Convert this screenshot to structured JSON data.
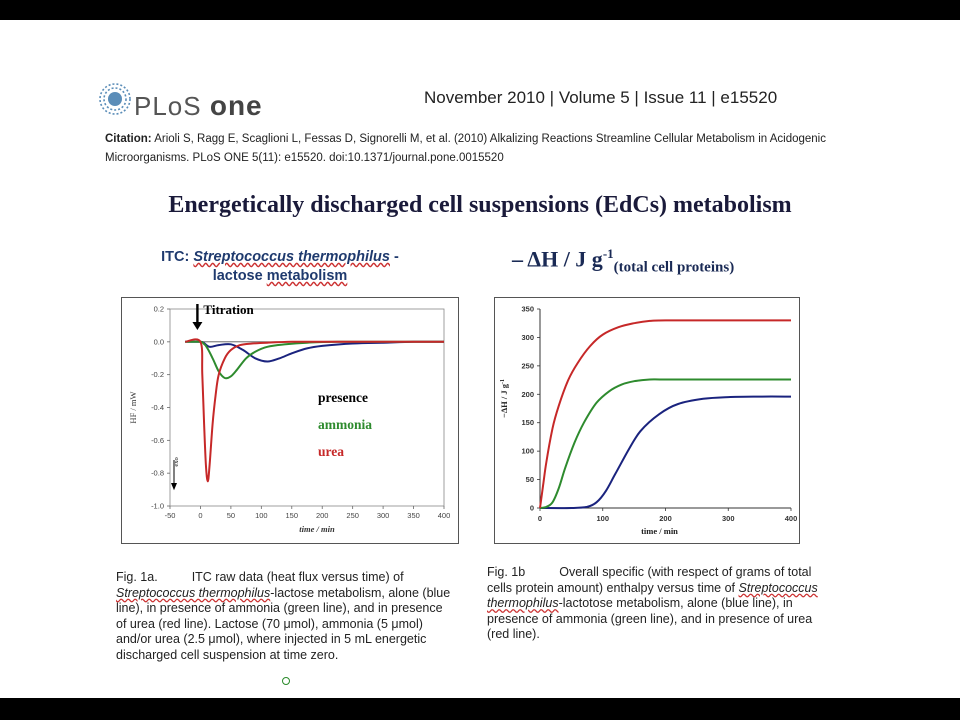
{
  "header": {
    "logo_text": "PLoS",
    "logo_text_2": "one",
    "issue": "November 2010 | Volume 5 | Issue 11 | e15520",
    "citation_label": "Citation:",
    "citation_text": "Arioli S, Ragg E, Scaglioni L, Fessas D, Signorelli M, et al. (2010) Alkalizing Reactions Streamline Cellular Metabolism in Acidogenic Microorganisms. PLoS ONE 5(11): e15520. doi:10.1371/journal.pone.0015520"
  },
  "slide_title": "Energetically discharged cell suspensions (EdCs) metabolism",
  "panel_a_heading": {
    "prefix": "ITC: ",
    "organism": "Streptococcus thermophilus",
    "suffix": " -",
    "line2_a": "lactose ",
    "line2_b": "metabolism"
  },
  "panel_b_heading": {
    "main": "– ΔH / J g",
    "sup": "-1",
    "sub": "(total cell proteins)"
  },
  "colors": {
    "presence": "#1a237e",
    "ammonia": "#2e8b2e",
    "urea": "#c62828"
  },
  "chart_data": [
    {
      "id": "fig1a",
      "type": "line",
      "title": "",
      "xlabel": "time / min",
      "ylabel": "HF / mW",
      "xlim": [
        -50,
        400
      ],
      "ylim": [
        -1.0,
        0.2
      ],
      "xticks": [
        -50,
        0,
        50,
        100,
        150,
        200,
        250,
        300,
        350,
        400
      ],
      "yticks": [
        0.2,
        0.0,
        -0.2,
        -0.4,
        -0.6,
        -0.8,
        -1.0
      ],
      "ytick_labels": [
        "0.2",
        "0.0",
        "-0.2",
        "-0.4",
        "-0.6",
        "-0.8",
        "-1.0"
      ],
      "annotations": {
        "titration": "Titration",
        "exo": "exo"
      },
      "legend": [
        "presence",
        "ammonia",
        "urea"
      ],
      "series": [
        {
          "name": "presence",
          "color": "#1a237e",
          "x": [
            -25,
            0,
            5,
            15,
            30,
            50,
            70,
            90,
            110,
            130,
            150,
            175,
            200,
            250,
            300,
            350,
            400
          ],
          "y": [
            0.0,
            0.0,
            -0.005,
            -0.03,
            -0.02,
            -0.015,
            -0.05,
            -0.1,
            -0.12,
            -0.1,
            -0.07,
            -0.04,
            -0.025,
            -0.01,
            -0.005,
            0.0,
            0.0
          ]
        },
        {
          "name": "ammonia",
          "color": "#2e8b2e",
          "x": [
            -25,
            0,
            5,
            10,
            20,
            30,
            40,
            50,
            60,
            75,
            90,
            110,
            140,
            175,
            225,
            300,
            400
          ],
          "y": [
            0.0,
            0.0,
            -0.01,
            -0.03,
            -0.1,
            -0.18,
            -0.22,
            -0.21,
            -0.17,
            -0.1,
            -0.06,
            -0.03,
            -0.015,
            -0.005,
            0.0,
            0.0,
            0.0
          ]
        },
        {
          "name": "urea",
          "color": "#c62828",
          "x": [
            -25,
            0,
            3,
            6,
            9,
            12,
            15,
            20,
            25,
            30,
            40,
            50,
            65,
            85,
            110,
            150,
            200,
            300,
            400
          ],
          "y": [
            0.0,
            0.0,
            -0.2,
            -0.5,
            -0.75,
            -0.85,
            -0.75,
            -0.5,
            -0.32,
            -0.2,
            -0.1,
            -0.05,
            -0.02,
            -0.01,
            -0.005,
            0.0,
            0.0,
            0.0,
            0.0
          ]
        }
      ]
    },
    {
      "id": "fig1b",
      "type": "line",
      "title": "",
      "xlabel": "time / min",
      "ylabel": "−ΔH / J g",
      "ylabel_sup": "-1",
      "xlim": [
        0,
        400
      ],
      "ylim": [
        0,
        350
      ],
      "xticks": [
        0,
        100,
        200,
        300,
        400
      ],
      "yticks": [
        0,
        50,
        100,
        150,
        200,
        250,
        300,
        350
      ],
      "series": [
        {
          "name": "presence",
          "color": "#1a237e",
          "x": [
            0,
            50,
            75,
            90,
            105,
            120,
            140,
            160,
            190,
            220,
            260,
            300,
            350,
            400
          ],
          "y": [
            0,
            0,
            2,
            10,
            30,
            60,
            100,
            135,
            165,
            183,
            192,
            195,
            196,
            196
          ]
        },
        {
          "name": "ammonia",
          "color": "#2e8b2e",
          "x": [
            0,
            10,
            20,
            30,
            40,
            55,
            70,
            90,
            110,
            130,
            150,
            175,
            200,
            300,
            400
          ],
          "y": [
            0,
            2,
            10,
            35,
            70,
            115,
            150,
            185,
            205,
            217,
            223,
            226,
            226,
            226,
            226
          ]
        },
        {
          "name": "urea",
          "color": "#c62828",
          "x": [
            0,
            5,
            10,
            20,
            30,
            45,
            60,
            80,
            100,
            125,
            150,
            175,
            200,
            300,
            400
          ],
          "y": [
            0,
            40,
            80,
            140,
            180,
            225,
            255,
            285,
            305,
            318,
            325,
            329,
            330,
            330,
            330
          ]
        }
      ]
    }
  ],
  "captions": {
    "fig1a": {
      "label": "Fig. 1a.",
      "t1": "ITC raw data (heat flux versus time) of",
      "t2_italic": "Streptococcus thermophilus",
      "t3": "-lactose metabolism, alone (blue line), in presence of ammonia (green line), and in presence of urea (red line). Lactose (70 μmol), ammonia (5 μmol) and/or urea (2.5 μmol), where injected in 5 mL energetic discharged cell suspension at time zero."
    },
    "fig1b": {
      "label": "Fig. 1b",
      "t1": "Overall specific (with respect of grams of total cells protein amount) enthalpy versus time of",
      "t2_italic": "Streptococcus thermophilus",
      "t3": "-lactotose metabolism, alone (blue line), in presence of ammonia (green line), and in presence of urea (red line)."
    }
  }
}
